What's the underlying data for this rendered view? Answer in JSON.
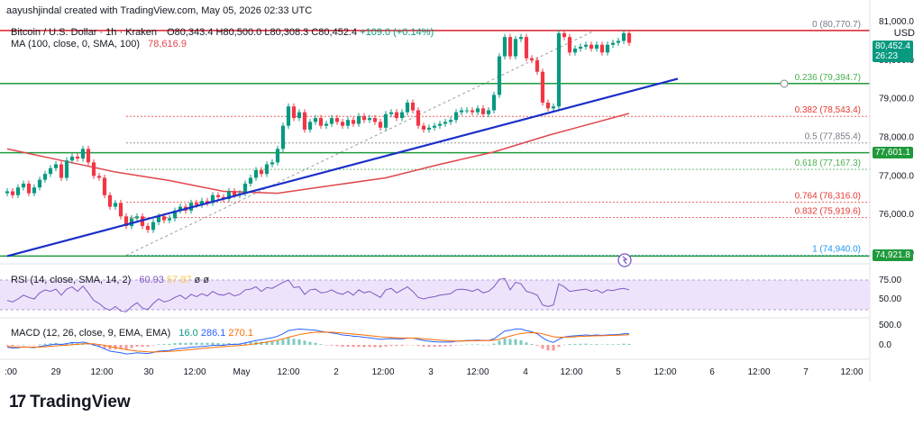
{
  "header": {
    "credit": "aayushjindal created with TradingView.com, May 05, 2026 02:33 UTC"
  },
  "legend": {
    "symbol": "Bitcoin / U.S. Dollar · 1h · Kraken",
    "ohlc": [
      "O80,343.4",
      "H80,500.0",
      "L80,308.3",
      "C80,452.4",
      "+109.0 (+0.14%)"
    ],
    "ma_label": "MA (100, close, 0, SMA, 100)",
    "ma_value": "78,616.9",
    "rsi_label": "RSI (14, close, SMA, 14, 2)",
    "rsi_values": [
      "60.93",
      "57.87",
      "ø",
      "ø"
    ],
    "macd_label": "MACD (12, 26, close, 9, EMA, EMA)",
    "macd_values": [
      "16.0",
      "286.1",
      "270.1"
    ]
  },
  "currency": "USD",
  "price_badges": {
    "last": "80,452.4",
    "countdown": "26:23",
    "red_line": "77,601.1",
    "low_line": "74,921.8"
  },
  "brand": "TradingView",
  "colors": {
    "up": "#089981",
    "down": "#f23645",
    "ma": "#e0474c",
    "trend": "#1a2fc9",
    "green_line": "#1f9a3c",
    "red_line": "#d8202a",
    "rsi": "#7e57c2",
    "rsi_band": "#ede4fb"
  },
  "chart_data": {
    "type": "candlestick",
    "y_axis_ticks": [
      "81,000.0",
      "80,000.0",
      "79,000.0",
      "78,000.0",
      "77,000.0",
      "76,000.0",
      "75,000.0"
    ],
    "x_axis_ticks": [
      ":00",
      "29",
      "12:00",
      "30",
      "12:00",
      "May",
      "12:00",
      "2",
      "12:00",
      "3",
      "12:00",
      "4",
      "12:00",
      "5",
      "12:00",
      "6",
      "12:00",
      "7",
      "12:00"
    ],
    "fibonacci": [
      {
        "level": "0",
        "price": "80,770.7"
      },
      {
        "level": "0.236",
        "price": "79,394.7"
      },
      {
        "level": "0.382",
        "price": "78,543.4"
      },
      {
        "level": "0.5",
        "price": "77,855.4"
      },
      {
        "level": "0.618",
        "price": "77,167.3"
      },
      {
        "level": "0.764",
        "price": "76,316.0"
      },
      {
        "level": "0.832",
        "price": "75,919.6"
      },
      {
        "level": "1",
        "price": "74,940.0"
      }
    ],
    "fib_values": [
      80770.7,
      79394.7,
      78543.4,
      77855.4,
      77167.3,
      76316.0,
      75919.6,
      74940.0
    ],
    "horizontal_lines": [
      80770.7,
      79394.7,
      77601.1,
      74921.8
    ],
    "trendline": [
      [
        0,
        74920
      ],
      [
        115,
        79420
      ]
    ],
    "ma100": [
      [
        0,
        77700
      ],
      [
        10,
        77400
      ],
      [
        20,
        77100
      ],
      [
        30,
        76880
      ],
      [
        40,
        76600
      ],
      [
        50,
        76550
      ],
      [
        60,
        76750
      ],
      [
        70,
        76950
      ],
      [
        80,
        77300
      ],
      [
        90,
        77620
      ],
      [
        100,
        78050
      ],
      [
        115,
        78620
      ]
    ],
    "close": [
      76600,
      76500,
      76700,
      76800,
      76550,
      76700,
      76900,
      77050,
      77200,
      77300,
      76950,
      77400,
      77500,
      77450,
      77700,
      77350,
      77000,
      76950,
      76500,
      76200,
      76300,
      75950,
      75700,
      75900,
      75950,
      75700,
      75600,
      75800,
      75950,
      75850,
      75900,
      76100,
      76200,
      76100,
      76300,
      76250,
      76350,
      76300,
      76500,
      76450,
      76400,
      76600,
      76500,
      76550,
      76800,
      76950,
      77150,
      77050,
      77300,
      77350,
      77700,
      78300,
      78800,
      78500,
      78650,
      78200,
      78400,
      78500,
      78300,
      78350,
      78500,
      78400,
      78300,
      78450,
      78350,
      78550,
      78450,
      78500,
      78400,
      78250,
      78600,
      78650,
      78500,
      78650,
      78900,
      78700,
      78300,
      78200,
      78250,
      78300,
      78350,
      78400,
      78450,
      78650,
      78700,
      78700,
      78650,
      78750,
      78600,
      78700,
      79100,
      80100,
      80600,
      80100,
      80550,
      80600,
      80050,
      80000,
      79700,
      78900,
      78750,
      78800,
      80700,
      80600,
      80200,
      80300,
      80350,
      80400,
      80300,
      80400,
      80200,
      80400,
      80450,
      80500,
      80700,
      80450
    ],
    "rsi": [
      48,
      46,
      50,
      55,
      52,
      50,
      58,
      62,
      60,
      63,
      55,
      63,
      66,
      60,
      67,
      58,
      48,
      44,
      38,
      35,
      40,
      34,
      33,
      40,
      45,
      38,
      36,
      44,
      50,
      46,
      48,
      52,
      55,
      50,
      56,
      53,
      57,
      54,
      60,
      56,
      55,
      58,
      54,
      56,
      62,
      63,
      66,
      60,
      65,
      64,
      68,
      72,
      75,
      65,
      66,
      56,
      62,
      63,
      58,
      59,
      62,
      58,
      56,
      60,
      55,
      62,
      58,
      60,
      56,
      52,
      62,
      64,
      58,
      62,
      66,
      60,
      52,
      50,
      52,
      53,
      55,
      56,
      57,
      62,
      63,
      62,
      60,
      63,
      58,
      60,
      66,
      76,
      77,
      62,
      72,
      70,
      60,
      58,
      55,
      42,
      40,
      42,
      70,
      66,
      60,
      61,
      62,
      63,
      60,
      62,
      58,
      62,
      61,
      63,
      64,
      62
    ],
    "macd": [
      -60,
      -80,
      -70,
      -50,
      -60,
      -70,
      -40,
      -20,
      0,
      20,
      10,
      30,
      60,
      50,
      70,
      40,
      0,
      -40,
      -100,
      -160,
      -180,
      -200,
      -230,
      -220,
      -200,
      -210,
      -220,
      -190,
      -160,
      -150,
      -140,
      -110,
      -90,
      -80,
      -60,
      -50,
      -40,
      -30,
      -10,
      -10,
      -10,
      10,
      10,
      20,
      50,
      80,
      110,
      130,
      160,
      180,
      220,
      280,
      360,
      380,
      400,
      390,
      380,
      370,
      340,
      320,
      300,
      280,
      250,
      240,
      220,
      210,
      190,
      180,
      160,
      140,
      150,
      160,
      150,
      150,
      170,
      170,
      140,
      110,
      90,
      80,
      70,
      70,
      70,
      90,
      100,
      110,
      110,
      120,
      110,
      110,
      150,
      250,
      350,
      370,
      400,
      400,
      360,
      330,
      280,
      180,
      100,
      60,
      140,
      200,
      220,
      230,
      240,
      250,
      240,
      250,
      240,
      250,
      255,
      260,
      280,
      280
    ],
    "macd_signal": [
      -40,
      -50,
      -55,
      -55,
      -56,
      -58,
      -55,
      -48,
      -38,
      -25,
      -18,
      -8,
      5,
      15,
      25,
      30,
      25,
      10,
      -10,
      -40,
      -70,
      -95,
      -120,
      -140,
      -155,
      -165,
      -175,
      -178,
      -175,
      -170,
      -165,
      -155,
      -145,
      -130,
      -118,
      -105,
      -92,
      -80,
      -66,
      -55,
      -46,
      -35,
      -26,
      -17,
      -4,
      10,
      30,
      50,
      72,
      94,
      118,
      150,
      190,
      225,
      260,
      285,
      305,
      318,
      322,
      322,
      318,
      310,
      298,
      286,
      272,
      260,
      246,
      233,
      218,
      202,
      192,
      186,
      178,
      173,
      172,
      171,
      165,
      154,
      142,
      130,
      118,
      108,
      100,
      98,
      98,
      100,
      102,
      106,
      107,
      108,
      116,
      143,
      184,
      221,
      257,
      286,
      300,
      306,
      301,
      277,
      242,
      205,
      192,
      194,
      199,
      205,
      212,
      220,
      224,
      229,
      231,
      235,
      239,
      243,
      250,
      256
    ]
  }
}
